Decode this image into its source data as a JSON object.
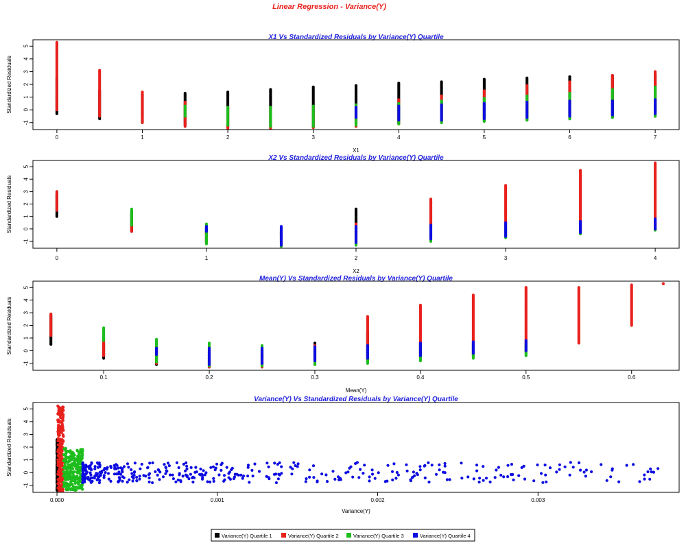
{
  "main_title": "Linear Regression - Variance(Y)",
  "colors": {
    "title": "#e8211c",
    "subtitle": "#2222dd",
    "q1": "#000000",
    "q2": "#e8211c",
    "q3": "#1dbd1d",
    "q4": "#0d0de0"
  },
  "legend": {
    "placement": "bottom-center",
    "items": [
      "Variance(Y) Quartile 1",
      "Variance(Y) Quartile 2",
      "Variance(Y) Quartile 3",
      "Variance(Y) Quartile 4"
    ]
  },
  "chart_data": [
    {
      "type": "scatter",
      "title": "X1 Vs Standardized Residuals by Variance(Y) Quartile",
      "xlabel": "X1",
      "ylabel": "Standardized Residuals",
      "xlim": [
        -0.28,
        7.28
      ],
      "ylim": [
        -1.55,
        5.5
      ],
      "xticks": [
        "0",
        "1",
        "2",
        "3",
        "4",
        "5",
        "6",
        "7"
      ],
      "yticks": [
        "-1",
        "0",
        "1",
        "2",
        "3",
        "4",
        "5"
      ],
      "grid": false,
      "x": [
        0,
        0.5,
        1,
        1.5,
        2,
        2.5,
        3,
        3.5,
        4,
        4.5,
        5,
        5.5,
        6,
        6.5,
        7
      ],
      "series": [
        {
          "name": "Variance(Y) Quartile 1",
          "y_max": [
            2.5,
            1.5,
            1.2,
            1.3,
            1.4,
            1.6,
            1.8,
            1.9,
            2.1,
            2.2,
            2.4,
            2.5,
            2.6,
            2.7,
            2.8
          ],
          "y_min": [
            -0.3,
            -0.7,
            -1.0,
            -1.2,
            -1.3,
            -1.3,
            -1.3,
            -1.2,
            -1.1,
            -1.0,
            -0.9,
            -0.8,
            -0.7,
            -0.6,
            -0.5
          ]
        },
        {
          "name": "Variance(Y) Quartile 2",
          "y_max": [
            5.3,
            3.1,
            1.4,
            0.6,
            0.2,
            0.1,
            0.2,
            0.4,
            0.8,
            1.1,
            1.5,
            1.9,
            2.2,
            2.7,
            3.0
          ],
          "y_min": [
            0.0,
            -0.5,
            -1.0,
            -1.3,
            -1.5,
            -1.5,
            -1.4,
            -1.3,
            -1.1,
            -0.9,
            -0.7,
            -0.5,
            -0.3,
            -0.1,
            0.0
          ]
        },
        {
          "name": "Variance(Y) Quartile 3",
          "y_max": [
            0.0,
            0.0,
            0.0,
            0.3,
            0.2,
            0.2,
            0.3,
            0.4,
            0.5,
            0.7,
            0.9,
            1.1,
            1.3,
            1.6,
            1.8
          ],
          "y_min": [
            0.0,
            0.0,
            0.0,
            -0.5,
            -1.2,
            -1.3,
            -1.3,
            -1.2,
            -1.1,
            -1.0,
            -0.9,
            -0.8,
            -0.7,
            -0.6,
            -0.5
          ]
        },
        {
          "name": "Variance(Y) Quartile 4",
          "y_max": [
            0.0,
            0.0,
            0.0,
            0.0,
            0.0,
            0.0,
            0.0,
            0.2,
            0.3,
            0.4,
            0.5,
            0.6,
            0.7,
            0.7,
            0.8
          ],
          "y_min": [
            0.0,
            0.0,
            0.0,
            0.0,
            0.0,
            0.0,
            0.0,
            -0.6,
            -0.8,
            -0.8,
            -0.7,
            -0.6,
            -0.5,
            -0.4,
            -0.3
          ]
        }
      ]
    },
    {
      "type": "scatter",
      "title": "X2 Vs Standardized Residuals by Variance(Y) Quartile",
      "xlabel": "X2",
      "ylabel": "Standardized Residuals",
      "xlim": [
        -0.16,
        4.16
      ],
      "ylim": [
        -1.55,
        5.5
      ],
      "xticks": [
        "0",
        "1",
        "2",
        "3",
        "4"
      ],
      "yticks": [
        "-1",
        "0",
        "1",
        "2",
        "3",
        "4",
        "5"
      ],
      "grid": false,
      "x": [
        0,
        0.5,
        1,
        1.5,
        2,
        2.5,
        3,
        3.5,
        4
      ],
      "series": [
        {
          "name": "Variance(Y) Quartile 1",
          "y_max": [
            2.8,
            1.4,
            0.0,
            0.0,
            1.6,
            2.2,
            0.0,
            0.0,
            0.0
          ],
          "y_min": [
            1.0,
            -0.2,
            -1.0,
            -0.6,
            -0.3,
            0.0,
            0.0,
            0.0,
            0.0
          ]
        },
        {
          "name": "Variance(Y) Quartile 2",
          "y_max": [
            3.0,
            1.2,
            -0.3,
            0.0,
            0.4,
            2.4,
            3.5,
            4.7,
            5.3
          ],
          "y_min": [
            1.5,
            -0.2,
            -1.1,
            -1.4,
            -1.2,
            -0.8,
            -0.5,
            -0.2,
            0.0
          ]
        },
        {
          "name": "Variance(Y) Quartile 3",
          "y_max": [
            0.0,
            1.6,
            0.4,
            -0.2,
            0.0,
            0.0,
            0.0,
            0.0,
            0.0
          ],
          "y_min": [
            0.0,
            0.3,
            -1.2,
            -1.4,
            -1.3,
            -1.0,
            -0.7,
            -0.4,
            -0.1
          ]
        },
        {
          "name": "Variance(Y) Quartile 4",
          "y_max": [
            0.0,
            0.0,
            0.2,
            0.2,
            0.2,
            0.3,
            0.5,
            0.6,
            0.8
          ],
          "y_min": [
            0.0,
            0.0,
            -0.2,
            -1.3,
            -1.1,
            -0.8,
            -0.6,
            -0.3,
            0.0
          ]
        }
      ]
    },
    {
      "type": "scatter",
      "title": "Mean(Y) Vs Standardized Residuals by Variance(Y) Quartile",
      "xlabel": "Mean(Y)",
      "ylabel": "Standardized Residuals",
      "xlim": [
        0.033,
        0.645
      ],
      "ylim": [
        -1.55,
        5.5
      ],
      "xticks": [
        "0.1",
        "0.2",
        "0.3",
        "0.4",
        "0.5",
        "0.6"
      ],
      "yticks": [
        "-1",
        "0",
        "1",
        "2",
        "3",
        "4",
        "5"
      ],
      "grid": false,
      "x": [
        0.05,
        0.1,
        0.15,
        0.2,
        0.25,
        0.3,
        0.35,
        0.4,
        0.45,
        0.5,
        0.55,
        0.6,
        0.63
      ],
      "series": [
        {
          "name": "Variance(Y) Quartile 1",
          "y_max": [
            2.8,
            0.6,
            -0.3,
            -0.4,
            0.0,
            0.6,
            1.5,
            0.0,
            0.0,
            0.0,
            0.0,
            0.0,
            0.0
          ],
          "y_min": [
            0.5,
            -0.6,
            -1.1,
            -1.3,
            -1.2,
            -0.9,
            -0.6,
            0.0,
            0.0,
            0.0,
            0.0,
            0.0,
            0.0
          ]
        },
        {
          "name": "Variance(Y) Quartile 2",
          "y_max": [
            2.9,
            1.0,
            0.3,
            0.0,
            -0.2,
            0.4,
            2.7,
            3.6,
            4.4,
            5.0,
            5.0,
            5.2,
            5.3
          ],
          "y_min": [
            1.2,
            -0.4,
            -1.0,
            -1.3,
            -1.3,
            -1.1,
            -0.8,
            -0.6,
            -0.4,
            -0.1,
            0.6,
            2.0,
            5.3
          ]
        },
        {
          "name": "Variance(Y) Quartile 3",
          "y_max": [
            0.0,
            1.8,
            0.9,
            0.6,
            0.4,
            0.3,
            0.3,
            0.4,
            0.4,
            0.5,
            0.0,
            0.0,
            0.0
          ],
          "y_min": [
            0.0,
            0.8,
            -0.9,
            -1.2,
            -1.2,
            -1.1,
            -1.0,
            -0.8,
            -0.6,
            -0.4,
            0.0,
            0.0,
            0.0
          ]
        },
        {
          "name": "Variance(Y) Quartile 4",
          "y_max": [
            0.0,
            0.0,
            0.2,
            0.2,
            0.2,
            0.3,
            0.4,
            0.6,
            0.7,
            0.8,
            0.0,
            0.0,
            0.0
          ],
          "y_min": [
            0.0,
            0.0,
            -0.3,
            -1.1,
            -1.0,
            -0.8,
            -0.6,
            -0.4,
            -0.2,
            0.0,
            0.0,
            0.0,
            0.0
          ]
        }
      ]
    },
    {
      "type": "scatter",
      "title": "Variance(Y) Vs Standardized Residuals by Variance(Y) Quartile",
      "xlabel": "Variance(Y)",
      "ylabel": "Standardized Residuals",
      "xlim": [
        -0.00015,
        0.00388
      ],
      "ylim": [
        -1.55,
        5.5
      ],
      "xticks": [
        "0.000",
        "0.001",
        "0.002",
        "0.003"
      ],
      "yticks": [
        "-1",
        "0",
        "1",
        "2",
        "3",
        "4",
        "5"
      ],
      "grid": false,
      "series": [
        {
          "name": "Variance(Y) Quartile 1",
          "x_range": [
            0.0,
            5e-06
          ],
          "y_range": [
            -1.4,
            2.6
          ]
        },
        {
          "name": "Variance(Y) Quartile 2",
          "x_range": [
            5e-06,
            4e-05
          ],
          "y_range": [
            -1.5,
            5.3
          ]
        },
        {
          "name": "Variance(Y) Quartile 3",
          "x_range": [
            4e-05,
            0.00016
          ],
          "y_range": [
            -1.4,
            1.9
          ]
        },
        {
          "name": "Variance(Y) Quartile 4",
          "x_range": [
            0.00016,
            0.00375
          ],
          "y_range": [
            -0.8,
            0.8
          ]
        }
      ]
    }
  ]
}
